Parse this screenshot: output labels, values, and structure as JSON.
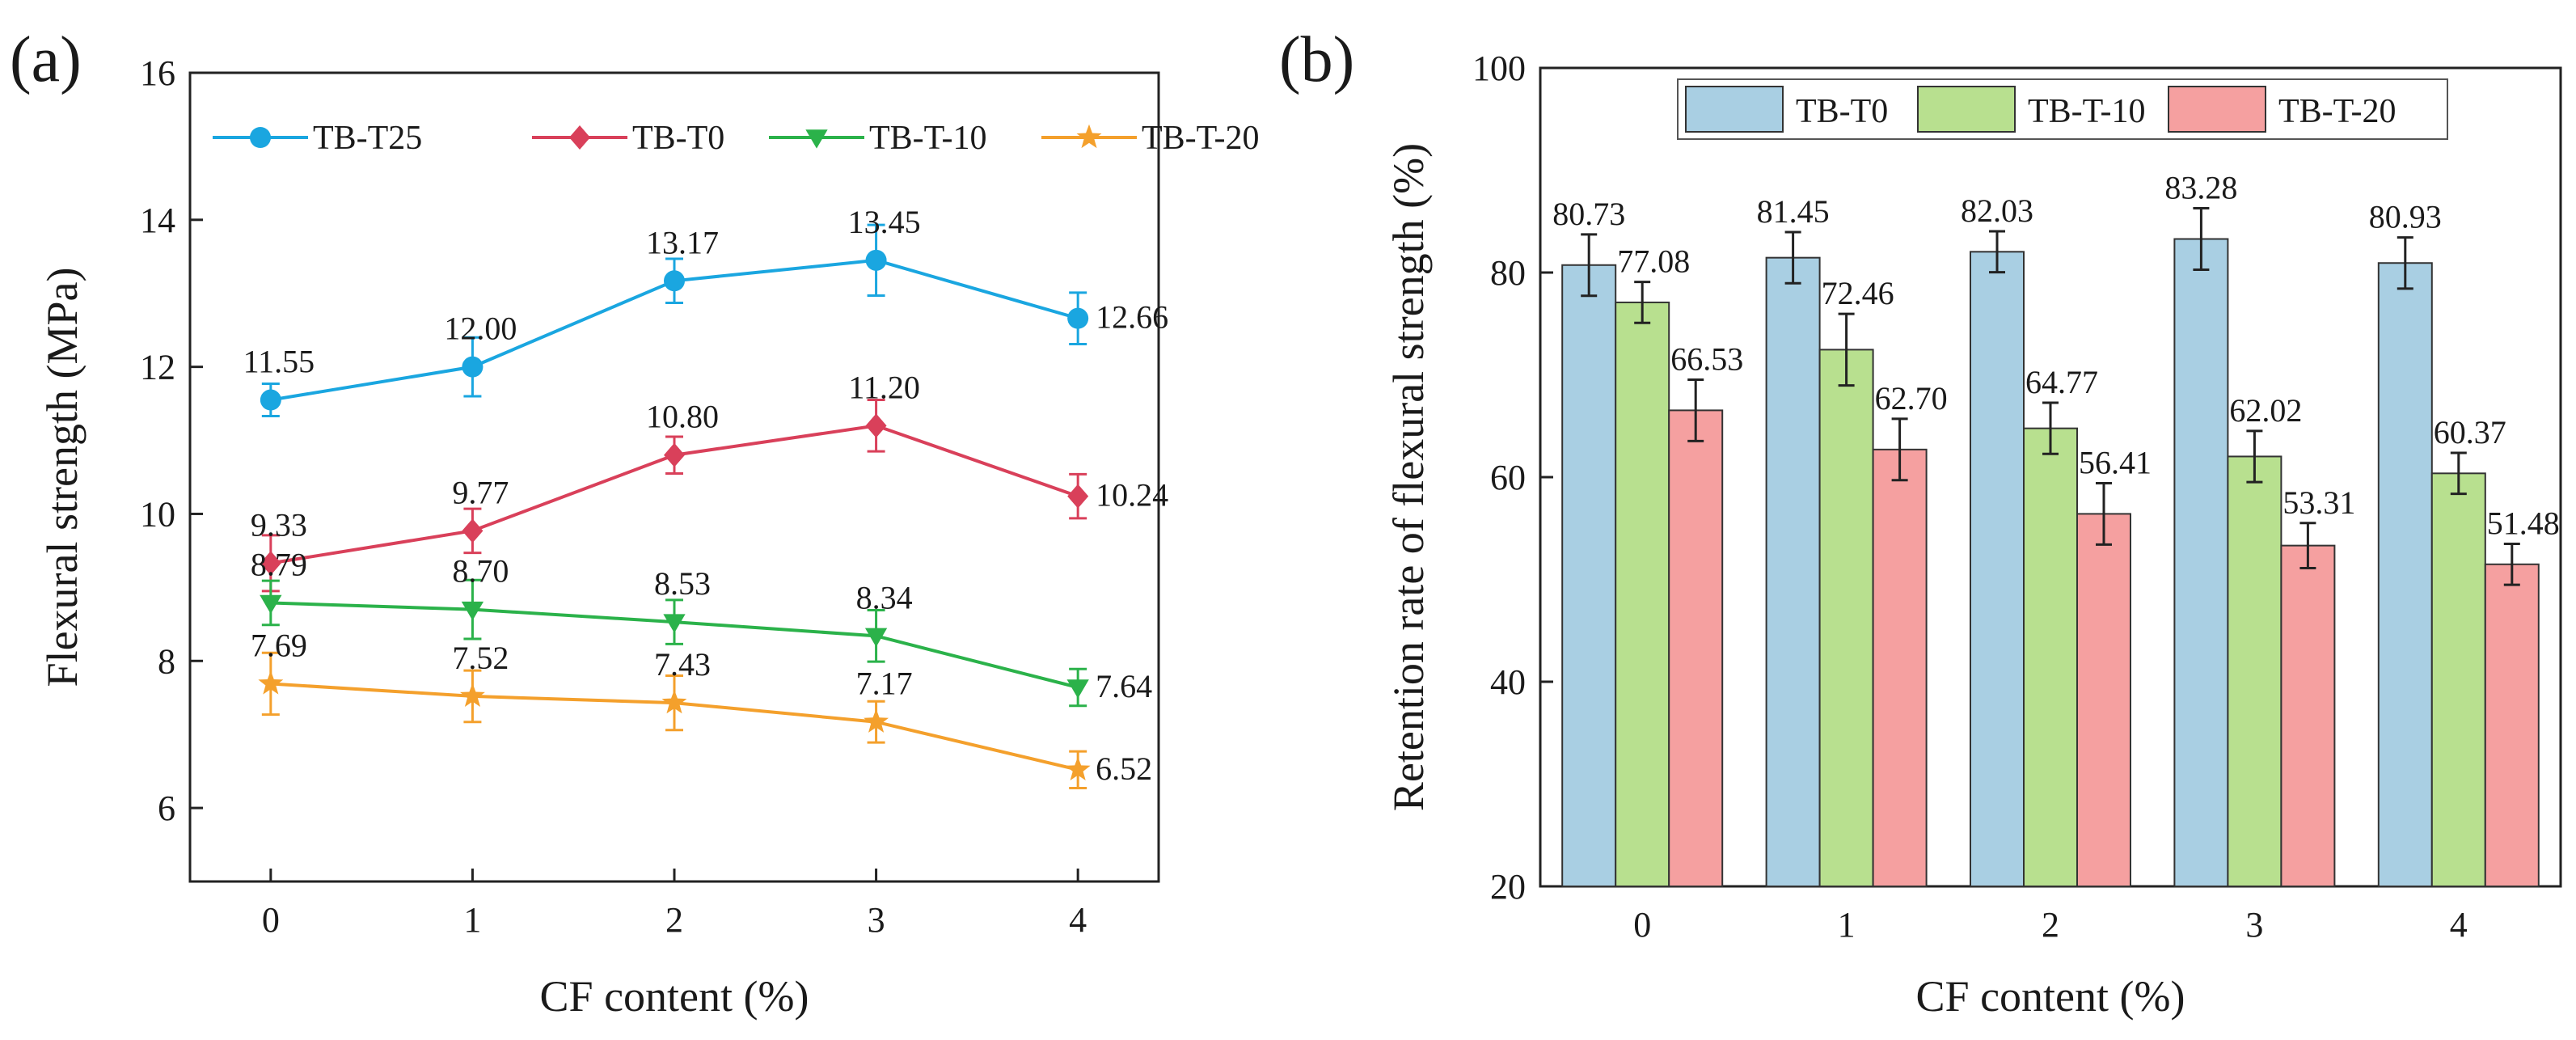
{
  "figure": {
    "panels": [
      "(a)",
      "(b)"
    ]
  },
  "chart_data": [
    {
      "type": "line",
      "panel_label": "(a)",
      "title": "",
      "xlabel": "CF content (%)",
      "ylabel": "Flexural strength (MPa)",
      "x": [
        0,
        1,
        2,
        3,
        4
      ],
      "x_tick_labels": [
        "0",
        "1",
        "2",
        "3",
        "4"
      ],
      "xlim": [
        -0.4,
        4.4
      ],
      "ylim": [
        5,
        16
      ],
      "y_ticks": [
        6,
        8,
        10,
        12,
        14,
        16
      ],
      "y_tick_labels": [
        "6",
        "8",
        "10",
        "12",
        "14",
        "16"
      ],
      "grid": false,
      "legend": "top",
      "series": [
        {
          "name": "TB-T25",
          "color": "#1aa6e0",
          "marker": "circle",
          "values": [
            11.55,
            12.0,
            13.17,
            13.45,
            12.66
          ],
          "errors": [
            0.22,
            0.4,
            0.3,
            0.48,
            0.35
          ],
          "labels": [
            "11.55",
            "12.00",
            "13.17",
            "13.45",
            "12.66"
          ]
        },
        {
          "name": "TB-T0",
          "color": "#d9405a",
          "marker": "diamond",
          "values": [
            9.33,
            9.77,
            10.8,
            11.2,
            10.24
          ],
          "errors": [
            0.38,
            0.3,
            0.25,
            0.35,
            0.3
          ],
          "labels": [
            "9.33",
            "9.77",
            "10.80",
            "11.20",
            "10.24"
          ]
        },
        {
          "name": "TB-T-10",
          "color": "#2bb24a",
          "marker": "triangle-down",
          "values": [
            8.79,
            8.7,
            8.53,
            8.34,
            7.64
          ],
          "errors": [
            0.3,
            0.4,
            0.3,
            0.35,
            0.25
          ],
          "labels": [
            "8.79",
            "8.70",
            "8.53",
            "8.34",
            "7.64"
          ]
        },
        {
          "name": "TB-T-20",
          "color": "#f4a02c",
          "marker": "star",
          "values": [
            7.69,
            7.52,
            7.43,
            7.17,
            6.52
          ],
          "errors": [
            0.42,
            0.35,
            0.37,
            0.28,
            0.25
          ],
          "labels": [
            "7.69",
            "7.52",
            "7.43",
            "7.17",
            "6.52"
          ]
        }
      ]
    },
    {
      "type": "bar",
      "panel_label": "(b)",
      "title": "",
      "xlabel": "CF content (%)",
      "ylabel": "Retention rate of flexural strength (%)",
      "categories": [
        "0",
        "1",
        "2",
        "3",
        "4"
      ],
      "ylim": [
        20,
        100
      ],
      "y_ticks": [
        20,
        40,
        60,
        80,
        100
      ],
      "y_tick_labels": [
        "20",
        "40",
        "60",
        "80",
        "100"
      ],
      "grid": false,
      "legend": "top",
      "series": [
        {
          "name": "TB-T0",
          "color": "#a9cfe3",
          "values": [
            80.73,
            81.45,
            82.03,
            83.28,
            80.93
          ],
          "errors": [
            3.0,
            2.5,
            2.0,
            3.0,
            2.5
          ],
          "labels": [
            "80.73",
            "81.45",
            "82.03",
            "83.28",
            "80.93"
          ]
        },
        {
          "name": "TB-T-10",
          "color": "#b8e08f",
          "values": [
            77.08,
            72.46,
            64.77,
            62.02,
            60.37
          ],
          "errors": [
            2.0,
            3.5,
            2.5,
            2.5,
            2.0
          ],
          "labels": [
            "77.08",
            "72.46",
            "64.77",
            "62.02",
            "60.37"
          ]
        },
        {
          "name": "TB-T-20",
          "color": "#f5a0a0",
          "values": [
            66.53,
            62.7,
            56.41,
            53.31,
            51.48
          ],
          "errors": [
            3.0,
            3.0,
            3.0,
            2.2,
            2.0
          ],
          "labels": [
            "66.53",
            "62.70",
            "56.41",
            "53.31",
            "51.48"
          ]
        }
      ]
    }
  ]
}
